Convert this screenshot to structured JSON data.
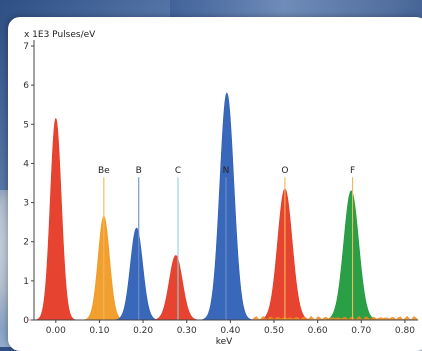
{
  "chart_data": {
    "type": "area",
    "ylabel": "x 1E3 Pulses/eV",
    "xlabel": "keV",
    "xlim": [
      -0.05,
      0.83
    ],
    "ylim": [
      0,
      7
    ],
    "x_ticks": [
      "0.00",
      "0.10",
      "0.20",
      "0.30",
      "0.40",
      "0.50",
      "0.60",
      "0.70",
      "0.80"
    ],
    "x_tick_values": [
      0.0,
      0.1,
      0.2,
      0.3,
      0.4,
      0.5,
      0.6,
      0.7,
      0.8
    ],
    "y_ticks": [
      "0",
      "1",
      "2",
      "3",
      "4",
      "5",
      "6",
      "7"
    ],
    "y_tick_values": [
      0,
      1,
      2,
      3,
      4,
      5,
      6,
      7
    ],
    "grid": false,
    "series": [
      {
        "name": "",
        "center": 0.0,
        "peak": 5.15,
        "sigma": 0.0125,
        "color": "#e53a25"
      },
      {
        "name": "Be",
        "center": 0.11,
        "peak": 2.65,
        "sigma": 0.013,
        "color": "#f09a24"
      },
      {
        "name": "B",
        "center": 0.185,
        "peak": 2.35,
        "sigma": 0.014,
        "color": "#2e5fb6"
      },
      {
        "name": "C",
        "center": 0.275,
        "peak": 1.65,
        "sigma": 0.015,
        "color": "#e53a25"
      },
      {
        "name": "N",
        "center": 0.392,
        "peak": 5.8,
        "sigma": 0.016,
        "color": "#2e5fb6"
      },
      {
        "name": "O",
        "center": 0.525,
        "peak": 3.35,
        "sigma": 0.0165,
        "color": "#e53a25"
      },
      {
        "name": "F",
        "center": 0.677,
        "peak": 3.3,
        "sigma": 0.017,
        "color": "#1f9a3c"
      }
    ],
    "background": {
      "color": "#f08a1e",
      "level": 0.05
    },
    "peak_lines": [
      {
        "name": "Be",
        "x": 0.11,
        "label_y": 3.75,
        "color": "#f5b657"
      },
      {
        "name": "B",
        "x": 0.19,
        "label_y": 3.75,
        "color": "#6f8fc9"
      },
      {
        "name": "C",
        "x": 0.28,
        "label_y": 3.75,
        "color": "#8fd2d8"
      },
      {
        "name": "N",
        "x": 0.39,
        "label_y": 3.75,
        "color": "#6f8fc9"
      },
      {
        "name": "O",
        "x": 0.525,
        "label_y": 3.75,
        "color": "#f5b657"
      },
      {
        "name": "F",
        "x": 0.68,
        "label_y": 3.75,
        "color": "#f5b657"
      }
    ]
  }
}
